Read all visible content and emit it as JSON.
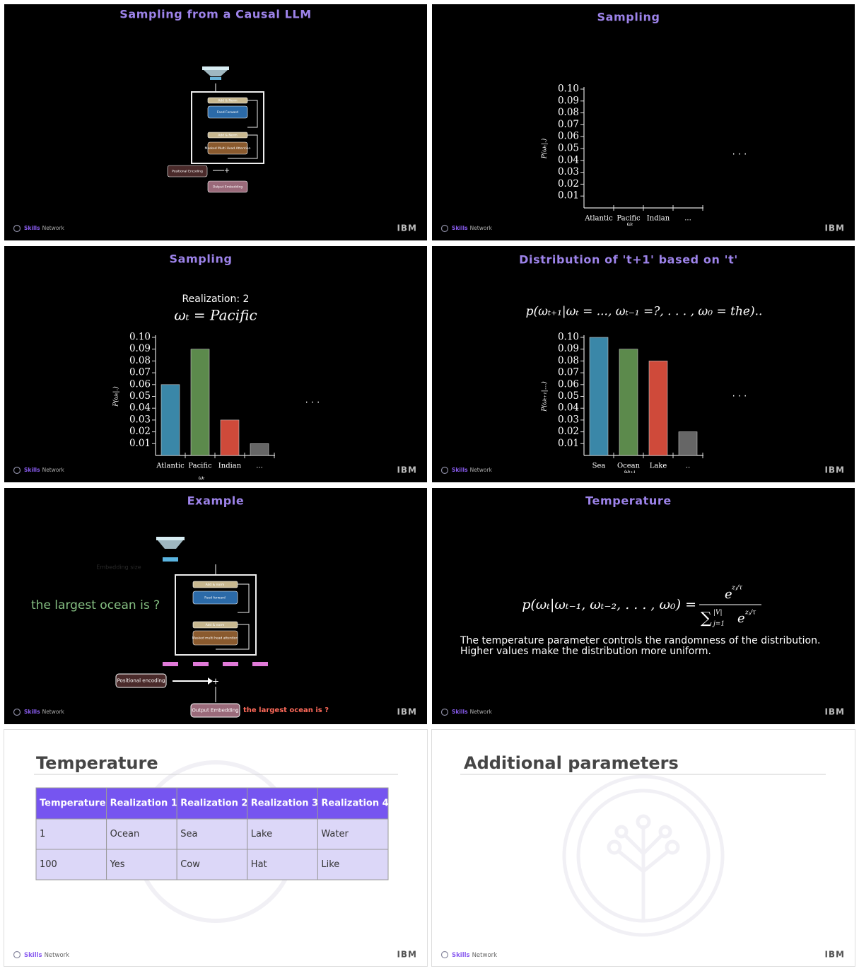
{
  "footer": {
    "brand_bold": "Skills",
    "brand": "Network",
    "logo": "IBM"
  },
  "slides": [
    {
      "title": "Sampling from a Causal LLM",
      "diagram": {
        "blocks": [
          "Add & Norm",
          "Feed Forward",
          "Add & Norm",
          "Masked Multi Head Attention"
        ],
        "positional_encoding": "Positional Encoding",
        "output_embedding": "Output Embedding"
      }
    },
    {
      "title": "Sampling",
      "chart": {
        "type": "bar",
        "categories": [
          "Atlantic",
          "Pacific",
          "Indian",
          "..."
        ],
        "ylim": [
          0,
          0.1
        ],
        "yticks": [
          0.01,
          0.02,
          0.03,
          0.04,
          0.05,
          0.06,
          0.07,
          0.08,
          0.09,
          {
            "value": 0.1,
            "label": "0.10"
          }
        ],
        "ylabel": "P(ωₜ|.)",
        "xlabel": "ωₜ",
        "ellipsis": ". . ."
      }
    },
    {
      "title": "Sampling",
      "subtitle": "Realization: 2",
      "formula": "ωₜ = Pacific",
      "chart": {
        "type": "bar",
        "categories": [
          "Atlantic",
          "Pacific",
          "Indian",
          "..."
        ],
        "values": [
          0.06,
          0.09,
          0.03,
          0.01
        ],
        "colors": [
          "#3a87a8",
          "#5c8a4c",
          "#cf4a3a",
          "#666666"
        ],
        "ylim": [
          0,
          0.1
        ],
        "yticks": [
          0.01,
          0.02,
          0.03,
          0.04,
          0.05,
          0.06,
          0.07,
          0.08,
          0.09,
          {
            "value": 0.1,
            "label": "0.10"
          }
        ],
        "ylabel": "P(ωₜ|.)",
        "xlabel": "ωₜ",
        "ellipsis": ". . ."
      }
    },
    {
      "title": "Distribution of 't+1' based on 't'",
      "formula": "p(ωₜ₊₁|ωₜ = ..., ωₜ₋₁ =?, . . . , ω₀ = the)..",
      "chart": {
        "type": "bar",
        "categories": [
          "Sea",
          "Ocean",
          "Lake",
          ".."
        ],
        "values": [
          0.1,
          0.09,
          0.08,
          0.02
        ],
        "colors": [
          "#3a87a8",
          "#5c8a4c",
          "#cf4a3a",
          "#666666"
        ],
        "ylim": [
          0,
          0.1
        ],
        "yticks": [
          0.01,
          0.02,
          0.03,
          0.04,
          0.05,
          0.06,
          0.07,
          0.08,
          0.09,
          {
            "value": 0.1,
            "label": "0.10"
          }
        ],
        "ylabel": "P(ωₜ₊₁|...)",
        "xlabel": "ωₜ₊₁",
        "ellipsis": ". . ."
      }
    },
    {
      "title": "Example",
      "prompt": "the largest ocean is ?",
      "embedding_note": "Embedding size",
      "diagram": {
        "blocks": [
          "Add & norm",
          "Feed forward",
          "Add & norm",
          "Masked multi head attention"
        ],
        "positional_encoding": "Positional encoding",
        "output_embedding": "Output Embedding",
        "input_text": "the largest ocean is ?"
      }
    },
    {
      "title": "Temperature",
      "formula": {
        "lhs": "p(ωₜ|ωₜ₋₁, ωₜ₋₂, . . . , ω₀) =",
        "num_base": "e",
        "num_exp": "zⱼ/τ",
        "den_sum": "∑",
        "den_upper": "|V|",
        "den_lower": "j=1",
        "den_base": "e",
        "den_exp": "zⱼ/τ"
      },
      "description": [
        "The temperature parameter controls the randomness of the distribution.",
        "Higher values make the distribution more uniform."
      ]
    },
    {
      "title": "Temperature",
      "table": {
        "headers": [
          "Temperature",
          "Realization 1",
          "Realization 2",
          "Realization 3",
          "Realization 4"
        ],
        "rows": [
          [
            "1",
            "Ocean",
            "Sea",
            "Lake",
            "Water"
          ],
          [
            "100",
            "Yes",
            "Cow",
            "Hat",
            "Like"
          ]
        ]
      }
    },
    {
      "title": "Additional parameters"
    }
  ]
}
